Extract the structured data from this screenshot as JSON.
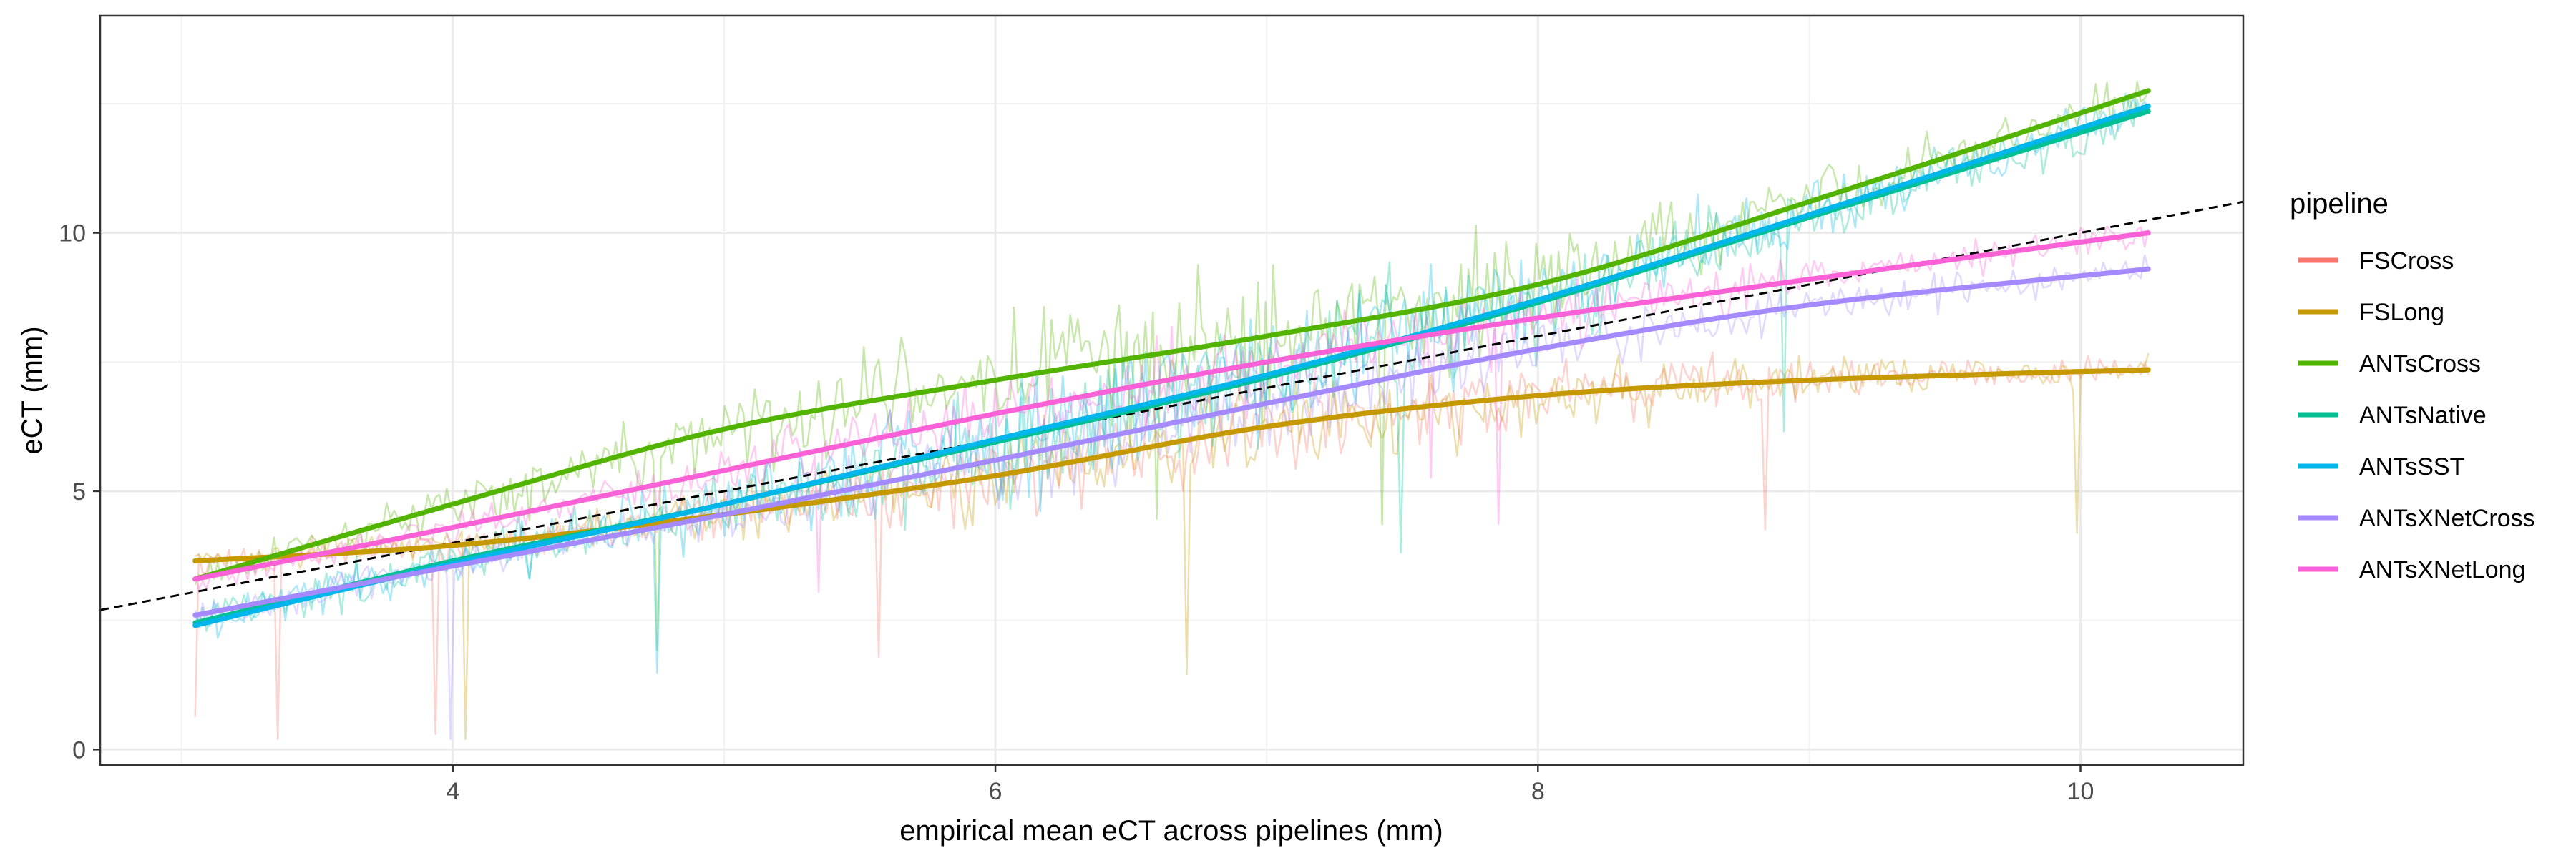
{
  "chart_data": {
    "type": "line",
    "title": "",
    "xlabel": "empirical mean eCT across pipelines (mm)",
    "ylabel": "eCT (mm)",
    "xlim": [
      2.7,
      10.6
    ],
    "ylim": [
      -0.3,
      14.2
    ],
    "x_ticks": [
      4,
      6,
      8,
      10
    ],
    "x_tick_labels": [
      "4",
      "6",
      "8",
      "10"
    ],
    "y_ticks": [
      0,
      5,
      10
    ],
    "y_tick_labels": [
      "0",
      "5",
      "10"
    ],
    "grid": true,
    "legend_position": "right",
    "legend_title": "pipeline",
    "identity_line": {
      "slope": 1,
      "intercept": 0,
      "style": "dashed",
      "color": "#000000"
    },
    "x": [
      3.05,
      4.0,
      5.0,
      6.0,
      7.0,
      8.0,
      9.0,
      10.25
    ],
    "series": [
      {
        "name": "FSCross",
        "color": "#F8766D",
        "values": [
          3.65,
          3.95,
          4.55,
          5.3,
          6.25,
          6.85,
          7.15,
          7.35
        ]
      },
      {
        "name": "FSLong",
        "color": "#C49A00",
        "values": [
          3.65,
          3.95,
          4.55,
          5.3,
          6.25,
          6.85,
          7.15,
          7.35
        ]
      },
      {
        "name": "ANTsCross",
        "color": "#53B400",
        "values": [
          3.3,
          4.75,
          6.2,
          7.15,
          8.0,
          9.0,
          10.6,
          12.75
        ]
      },
      {
        "name": "ANTsNative",
        "color": "#00C094",
        "values": [
          2.45,
          3.65,
          4.75,
          5.95,
          7.2,
          8.65,
          10.3,
          12.35
        ]
      },
      {
        "name": "ANTsSST",
        "color": "#00B6EB",
        "values": [
          2.4,
          3.6,
          4.75,
          6.0,
          7.25,
          8.7,
          10.35,
          12.45
        ]
      },
      {
        "name": "ANTsXNetCross",
        "color": "#A58AFF",
        "values": [
          2.6,
          3.55,
          4.55,
          5.6,
          6.7,
          7.75,
          8.6,
          9.3
        ]
      },
      {
        "name": "ANTsXNetLong",
        "color": "#FB61D7",
        "values": [
          3.3,
          4.3,
          5.4,
          6.5,
          7.5,
          8.35,
          9.1,
          10.0
        ]
      }
    ]
  }
}
